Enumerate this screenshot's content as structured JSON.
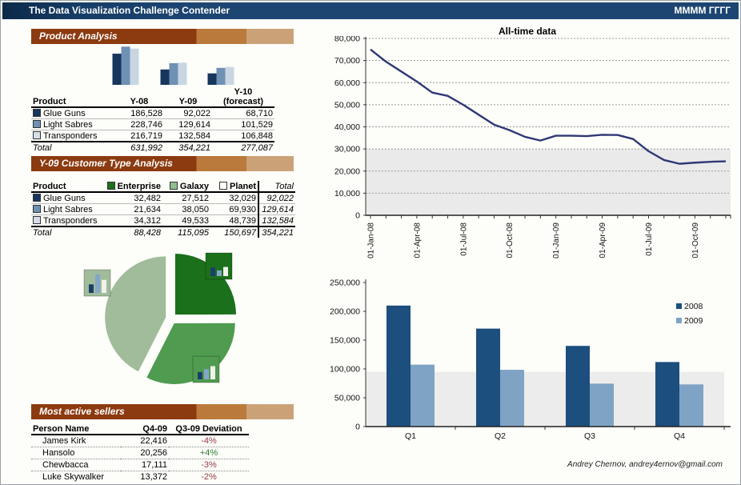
{
  "header": {
    "title": "The Data Visualization Challenge Contender",
    "period_placeholder": "ММММ ГГГГ"
  },
  "sections": {
    "product_analysis": {
      "title": "Product Analysis"
    },
    "customer_analysis": {
      "title": "Y-09 Customer Type Analysis"
    },
    "sellers": {
      "title": "Most active sellers"
    }
  },
  "product_table": {
    "columns": [
      "Product",
      "Y-08",
      "Y-09",
      "Y-10"
    ],
    "forecast_label": "(forecast)",
    "rows": [
      {
        "name": "Glue Guns",
        "swatch": "#17365D",
        "values": [
          "186,528",
          "92,022",
          "68,710"
        ]
      },
      {
        "name": "Light Sabres",
        "swatch": "#6E91B4",
        "values": [
          "228,746",
          "129,614",
          "101,529"
        ]
      },
      {
        "name": "Transponders",
        "swatch": "#D6DEE7",
        "values": [
          "216,719",
          "132,584",
          "106,848"
        ]
      }
    ],
    "total_label": "Total",
    "totals": [
      "631,992",
      "354,221",
      "277,087"
    ]
  },
  "customer_table": {
    "columns": [
      "Product",
      "Enterprise",
      "Galaxy",
      "Planet",
      "Total"
    ],
    "header_swatches": [
      "#1B701B",
      "#8FBE8F",
      "#FFFFFF"
    ],
    "rows": [
      {
        "name": "Glue Guns",
        "swatch": "#17365D",
        "values": [
          "32,482",
          "27,512",
          "32,029"
        ],
        "total": "92,022"
      },
      {
        "name": "Light Sabres",
        "swatch": "#6E91B4",
        "values": [
          "21,634",
          "38,050",
          "69,930"
        ],
        "total": "129,614"
      },
      {
        "name": "Transponders",
        "swatch": "#D6DEE7",
        "values": [
          "34,312",
          "49,533",
          "48,739"
        ],
        "total": "132,584"
      }
    ],
    "total_label": "Total",
    "totals": [
      "88,428",
      "115,095",
      "150,697"
    ],
    "grand_total": "354,221"
  },
  "sellers_table": {
    "columns": [
      "Person Name",
      "Q4-09",
      "Q3-09 Deviation"
    ],
    "rows": [
      {
        "name": "James Kirk",
        "q4": "22,416",
        "deviation": "-4%"
      },
      {
        "name": "Hansolo",
        "q4": "20,256",
        "deviation": "+4%"
      },
      {
        "name": "Chewbacca",
        "q4": "17,111",
        "deviation": "-3%"
      },
      {
        "name": "Luke Skywalker",
        "q4": "13,372",
        "deviation": "-2%"
      }
    ]
  },
  "footer": {
    "credit": "Andrey Chernov, andrey4ernov@gmail.com"
  },
  "chart_data": [
    {
      "id": "product_by_year",
      "type": "bar",
      "title": "",
      "categories": [
        "Y-08",
        "Y-09",
        "Y-10 (forecast)"
      ],
      "series": [
        {
          "name": "Glue Guns",
          "color": "#17365D",
          "values": [
            186528,
            92022,
            68710
          ]
        },
        {
          "name": "Light Sabres",
          "color": "#6E91B4",
          "values": [
            228746,
            129614,
            101529
          ]
        },
        {
          "name": "Transponders",
          "color": "#C9D6E2",
          "values": [
            216719,
            132584,
            106848
          ]
        }
      ],
      "ylim": [
        0,
        230000
      ],
      "axes": "hidden",
      "legend": "none"
    },
    {
      "id": "all_time",
      "type": "line",
      "title": "All-time data",
      "color": "#2F3876",
      "x_tick_labels": [
        "01-Jan-08",
        "01-Apr-08",
        "01-Jul-08",
        "01-Oct-08",
        "01-Jan-09",
        "01-Apr-09",
        "01-Jul-09",
        "01-Oct-09"
      ],
      "label_every": 3,
      "values": [
        75000,
        69500,
        65000,
        60500,
        55500,
        54000,
        50000,
        45500,
        41000,
        38500,
        35500,
        33800,
        36000,
        36000,
        35800,
        36400,
        36300,
        34500,
        29000,
        25000,
        23300,
        23800,
        24200,
        24400
      ],
      "ylim": [
        0,
        80000
      ],
      "y_tick_step": 10000,
      "shaded_band": [
        0,
        30000
      ],
      "grid": "dotted-horizontal",
      "legend": "none"
    },
    {
      "id": "quarterly",
      "type": "bar",
      "categories": [
        "Q1",
        "Q2",
        "Q3",
        "Q4"
      ],
      "series": [
        {
          "name": "2008",
          "color": "#1C4E7E",
          "values": [
            210000,
            170000,
            140000,
            112000
          ]
        },
        {
          "name": "2009",
          "color": "#7FA3C4",
          "values": [
            107500,
            98500,
            74500,
            73200
          ]
        }
      ],
      "ylim": [
        0,
        250000
      ],
      "y_tick_step": 50000,
      "shaded_band": [
        0,
        95000
      ],
      "grid": "off",
      "legend_position": "right"
    },
    {
      "id": "customer_pie",
      "type": "pie",
      "slices": [
        {
          "name": "Enterprise",
          "value": 88428,
          "color": "#1B701B"
        },
        {
          "name": "Galaxy",
          "value": 115095,
          "color": "#4F9B50"
        },
        {
          "name": "Planet",
          "value": 150697,
          "color": "#A0BC9B"
        }
      ],
      "mini_bar_colors": [
        "#1B3E69",
        "#83A7C6",
        "#EFF3EC"
      ],
      "mini_bars": {
        "Enterprise": [
          32482,
          21634,
          34312
        ],
        "Galaxy": [
          27512,
          38050,
          49533
        ],
        "Planet": [
          32029,
          69930,
          48739
        ]
      }
    }
  ]
}
